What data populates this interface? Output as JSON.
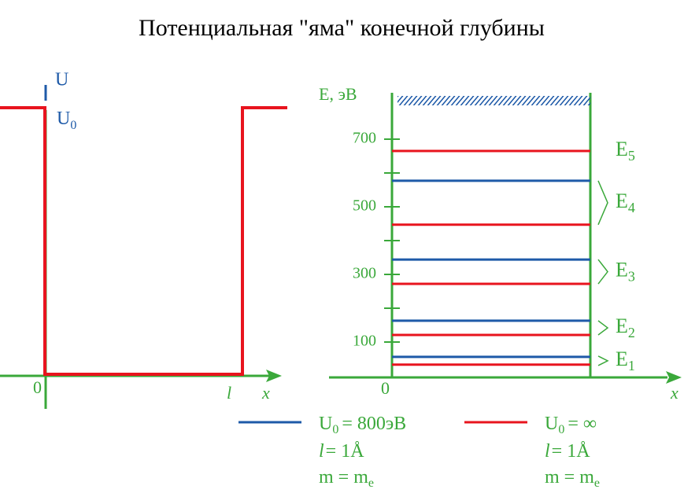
{
  "title": "Потенциальная \"яма\" конечной глубины",
  "left_plot": {
    "y_label": "U",
    "level_label": "U",
    "level_sub": "0",
    "origin": "0",
    "width_label": "l",
    "x_label": "x"
  },
  "right_plot": {
    "y_label": "E, эВ",
    "origin": "0",
    "x_label": "x",
    "ylim": [
      0,
      800
    ],
    "yticks": [
      100,
      300,
      500,
      700
    ],
    "minor_yticks": [
      200,
      400,
      600
    ],
    "finite_levels": [
      56,
      163,
      344,
      577
    ],
    "infinite_levels": [
      33,
      121,
      272,
      447,
      665
    ],
    "level_labels": [
      {
        "name": "E",
        "sub": "1"
      },
      {
        "name": "E",
        "sub": "2"
      },
      {
        "name": "E",
        "sub": "3"
      },
      {
        "name": "E",
        "sub": "4"
      },
      {
        "name": "E",
        "sub": "5"
      }
    ]
  },
  "legend": [
    {
      "color": "#1e5aa8",
      "u": "U",
      "u_sub": "0",
      "u_value": "= 800эВ",
      "l": "l",
      "l_value": "= 1Å",
      "m": "m = m",
      "m_sub": "e"
    },
    {
      "color": "#e8141e",
      "u": "U",
      "u_sub": "0",
      "u_value": "= ∞",
      "l": "l",
      "l_value": "= 1Å",
      "m": "m = m",
      "m_sub": "e"
    }
  ]
}
